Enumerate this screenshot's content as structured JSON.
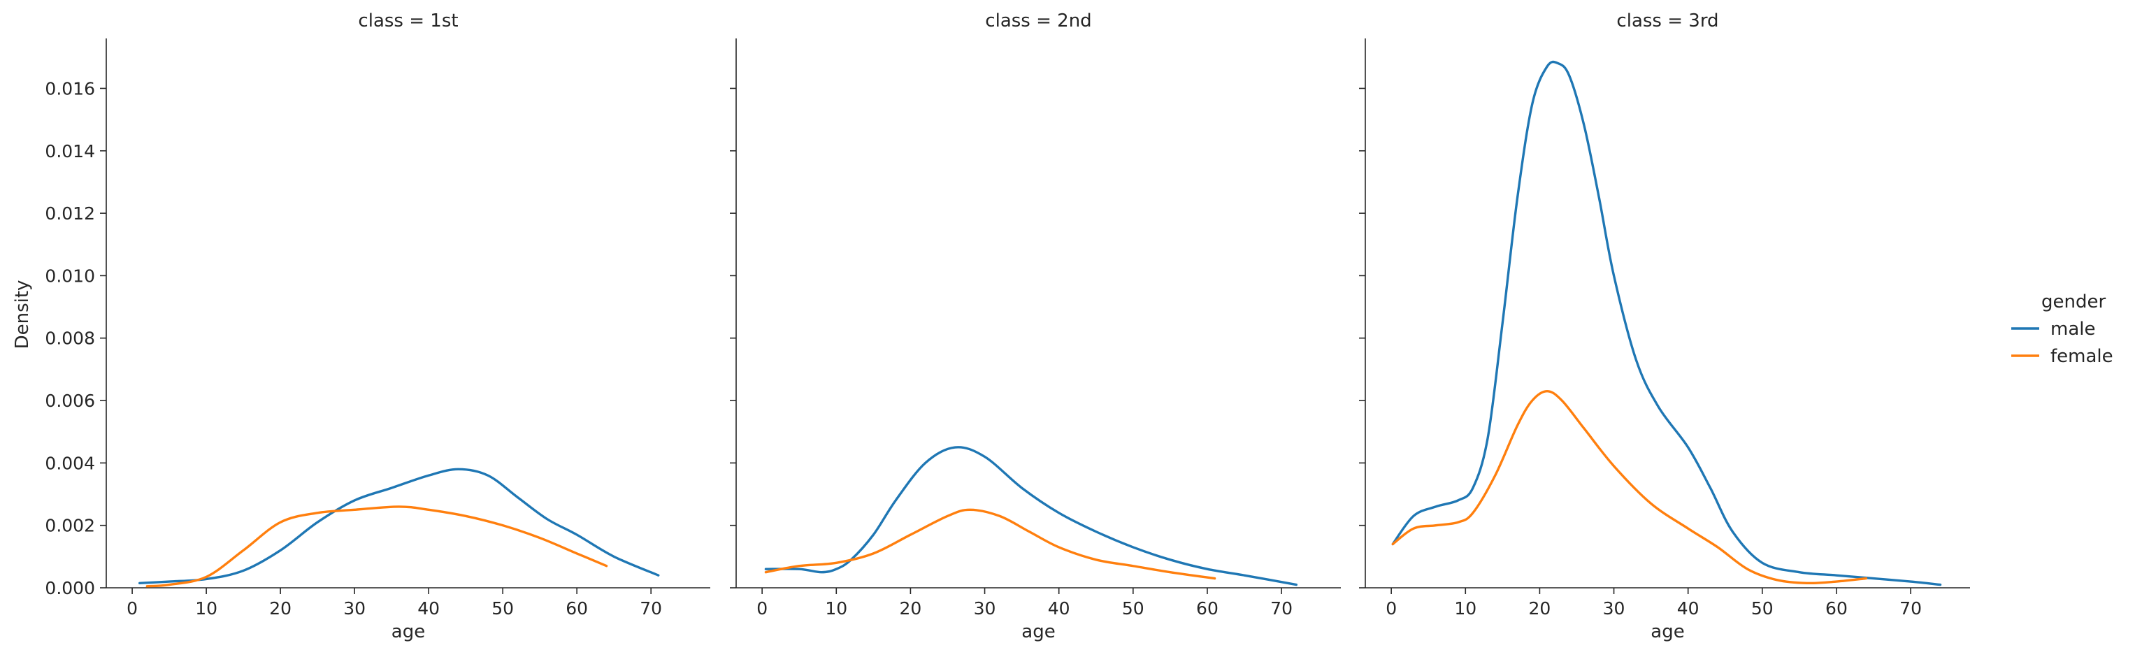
{
  "figure": {
    "legend_title": "gender",
    "legend_entries": [
      {
        "label": "male",
        "color": "#1f77b4"
      },
      {
        "label": "female",
        "color": "#ff7f0e"
      }
    ],
    "ylabel": "Density",
    "xlabel": "age"
  },
  "chart_data": [
    {
      "type": "line",
      "title": "class = 1st",
      "xlabel": "age",
      "ylabel": "Density",
      "xlim": [
        -3.5,
        78
      ],
      "ylim": [
        0,
        0.0176
      ],
      "xticks": [
        0,
        10,
        20,
        30,
        40,
        50,
        60,
        70
      ],
      "yticks": [
        0,
        0.002,
        0.004,
        0.006,
        0.008,
        0.01,
        0.012,
        0.014,
        0.016
      ],
      "ytick_labels": [
        "0.000",
        "0.002",
        "0.004",
        "0.006",
        "0.008",
        "0.010",
        "0.012",
        "0.014",
        "0.016"
      ],
      "legend": "right",
      "series": [
        {
          "name": "male",
          "color": "#1f77b4",
          "x": [
            1,
            5,
            10,
            15,
            20,
            25,
            30,
            35,
            40,
            44,
            48,
            52,
            56,
            60,
            65,
            71
          ],
          "y": [
            0.00015,
            0.0002,
            0.00028,
            0.00055,
            0.0012,
            0.0021,
            0.0028,
            0.0032,
            0.0036,
            0.0038,
            0.0036,
            0.0029,
            0.0022,
            0.0017,
            0.001,
            0.0004
          ]
        },
        {
          "name": "female",
          "color": "#ff7f0e",
          "x": [
            2,
            5,
            10,
            15,
            20,
            25,
            30,
            36,
            40,
            45,
            50,
            55,
            60,
            64
          ],
          "y": [
            5e-05,
            0.0001,
            0.00035,
            0.0012,
            0.0021,
            0.0024,
            0.0025,
            0.0026,
            0.0025,
            0.0023,
            0.002,
            0.0016,
            0.0011,
            0.0007
          ]
        }
      ]
    },
    {
      "type": "line",
      "title": "class = 2nd",
      "xlabel": "age",
      "ylabel": "",
      "xlim": [
        -3.5,
        78
      ],
      "ylim": [
        0,
        0.0176
      ],
      "xticks": [
        0,
        10,
        20,
        30,
        40,
        50,
        60,
        70
      ],
      "yticks": [
        0,
        0.002,
        0.004,
        0.006,
        0.008,
        0.01,
        0.012,
        0.014,
        0.016
      ],
      "ytick_labels": [],
      "legend": "right",
      "series": [
        {
          "name": "male",
          "color": "#1f77b4",
          "x": [
            0.5,
            5,
            8,
            10,
            12,
            15,
            18,
            22,
            26,
            30,
            35,
            40,
            45,
            50,
            55,
            60,
            65,
            72
          ],
          "y": [
            0.0006,
            0.0006,
            0.0005,
            0.0006,
            0.0009,
            0.0017,
            0.0028,
            0.004,
            0.0045,
            0.0042,
            0.0032,
            0.0024,
            0.0018,
            0.0013,
            0.0009,
            0.0006,
            0.0004,
            0.0001
          ]
        },
        {
          "name": "female",
          "color": "#ff7f0e",
          "x": [
            0.5,
            5,
            10,
            15,
            20,
            25,
            28,
            32,
            36,
            40,
            45,
            50,
            55,
            61
          ],
          "y": [
            0.0005,
            0.0007,
            0.0008,
            0.0011,
            0.0017,
            0.0023,
            0.0025,
            0.0023,
            0.0018,
            0.0013,
            0.0009,
            0.0007,
            0.0005,
            0.0003
          ]
        }
      ]
    },
    {
      "type": "line",
      "title": "class = 3rd",
      "xlabel": "age",
      "ylabel": "",
      "xlim": [
        -3.5,
        78
      ],
      "ylim": [
        0,
        0.0176
      ],
      "xticks": [
        0,
        10,
        20,
        30,
        40,
        50,
        60,
        70
      ],
      "yticks": [
        0,
        0.002,
        0.004,
        0.006,
        0.008,
        0.01,
        0.012,
        0.014,
        0.016
      ],
      "ytick_labels": [],
      "legend": "right",
      "series": [
        {
          "name": "male",
          "color": "#1f77b4",
          "x": [
            0.2,
            3,
            6,
            9,
            11,
            13,
            15,
            17,
            19,
            21,
            22.5,
            24,
            26,
            28,
            30,
            33,
            36,
            40,
            43,
            46,
            50,
            55,
            60,
            65,
            70,
            74
          ],
          "y": [
            0.0014,
            0.0023,
            0.0026,
            0.0028,
            0.0032,
            0.0048,
            0.0085,
            0.0125,
            0.0155,
            0.0167,
            0.0168,
            0.0164,
            0.0148,
            0.0125,
            0.01,
            0.0073,
            0.0058,
            0.0045,
            0.0032,
            0.0018,
            0.0008,
            0.0005,
            0.0004,
            0.0003,
            0.0002,
            0.0001
          ]
        },
        {
          "name": "female",
          "color": "#ff7f0e",
          "x": [
            0.2,
            3,
            6,
            9,
            11,
            14,
            17,
            19,
            21,
            23,
            26,
            30,
            35,
            40,
            44,
            48,
            52,
            56,
            60,
            64
          ],
          "y": [
            0.0014,
            0.0019,
            0.002,
            0.0021,
            0.0024,
            0.0036,
            0.0052,
            0.006,
            0.0063,
            0.006,
            0.0051,
            0.0039,
            0.0027,
            0.0019,
            0.0013,
            0.0006,
            0.00025,
            0.00015,
            0.0002,
            0.0003
          ]
        }
      ]
    }
  ]
}
